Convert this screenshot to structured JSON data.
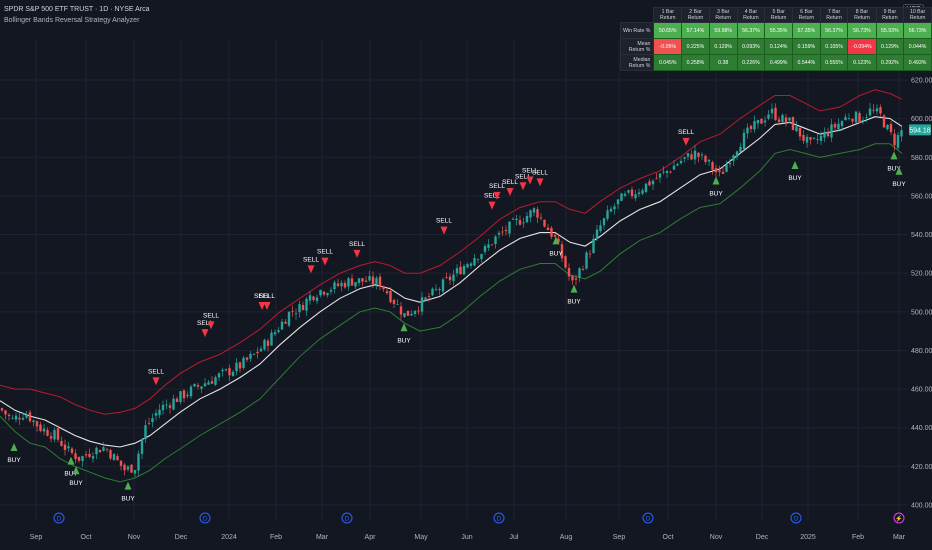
{
  "header": {
    "title": "SPDR S&P 500 ETF TRUST · 1D · NYSE Arca",
    "subtitle": "Bollinger Bands Reversal Strategy Analyzer",
    "currency": "USD"
  },
  "stats_table": {
    "columns": [
      "1 Bar Return",
      "2 Bar Return",
      "3 Bar Return",
      "4 Bar Return",
      "5 Bar Return",
      "6 Bar Return",
      "7 Bar Return",
      "8 Bar Return",
      "9 Bar Return",
      "10 Bar Return"
    ],
    "rows": [
      {
        "label": "Win Rate %",
        "values": [
          "50.65%",
          "57.14%",
          "59.98%",
          "56.37%",
          "55.35%",
          "57.35%",
          "56.37%",
          "56.73%",
          "55.93%",
          "56.73%"
        ],
        "styles": [
          "wr",
          "wr",
          "wr",
          "wr",
          "wr",
          "wr",
          "wr",
          "wr",
          "wr",
          "wr"
        ]
      },
      {
        "label": "Mean Return %",
        "values": [
          "-0.05%",
          "0.225%",
          "0.129%",
          "0.093%",
          "0.124%",
          "0.159%",
          "0.105%",
          "-0.094%",
          "0.129%",
          "0.044%"
        ],
        "styles": [
          "ngl",
          "gd",
          "gd",
          "gd",
          "gd",
          "gd",
          "gd",
          "ng",
          "gd",
          "gd"
        ]
      },
      {
        "label": "Median Return %",
        "values": [
          "0.045%",
          "0.258%",
          "0.38",
          "0.226%",
          "0.499%",
          "0.544%",
          "0.555%",
          "0.123%",
          "0.292%",
          "0.493%"
        ],
        "styles": [
          "gd",
          "gd",
          "gd",
          "gd",
          "gd",
          "gd",
          "gd",
          "gd",
          "gd",
          "gd"
        ]
      }
    ]
  },
  "colors": {
    "background": "#131722",
    "grid": "#1f2331",
    "up": "#26a69a",
    "down": "#ef5350",
    "basis": "#e6e6e6",
    "upper_band": "#b71c2f",
    "lower_band": "#2e7d32",
    "buy": "#4caf50",
    "sell": "#f23645",
    "axis_text": "#b2b5be",
    "price_label": "#26a69a"
  },
  "chart_data": {
    "type": "candlestick",
    "title": "SPDR S&P 500 ETF TRUST · 1D · NYSE Arca",
    "x_ticks": [
      "Sep",
      "Oct",
      "Nov",
      "Dec",
      "2024",
      "Feb",
      "Mar",
      "Apr",
      "May",
      "Jun",
      "Jul",
      "Aug",
      "Sep",
      "Oct",
      "Nov",
      "Dec",
      "2025",
      "Feb",
      "Mar"
    ],
    "y_ticks": [
      400,
      420,
      440,
      460,
      480,
      500,
      520,
      540,
      560,
      580,
      600,
      620
    ],
    "ylim": [
      395,
      628
    ],
    "last_price_label": "594.18",
    "series": [
      {
        "name": "Price",
        "kind": "close",
        "points": [
          [
            0,
            450
          ],
          [
            12,
            444
          ],
          [
            25,
            448
          ],
          [
            40,
            440
          ],
          [
            55,
            436
          ],
          [
            68,
            428
          ],
          [
            80,
            424
          ],
          [
            92,
            428
          ],
          [
            105,
            430
          ],
          [
            115,
            424
          ],
          [
            125,
            418
          ],
          [
            135,
            420
          ],
          [
            145,
            440
          ],
          [
            160,
            450
          ],
          [
            180,
            456
          ],
          [
            200,
            462
          ],
          [
            220,
            467
          ],
          [
            240,
            472
          ],
          [
            255,
            478
          ],
          [
            268,
            485
          ],
          [
            280,
            493
          ],
          [
            290,
            500
          ],
          [
            300,
            502
          ],
          [
            310,
            508
          ],
          [
            320,
            511
          ],
          [
            335,
            513
          ],
          [
            350,
            516
          ],
          [
            365,
            516
          ],
          [
            380,
            515
          ],
          [
            395,
            505
          ],
          [
            405,
            498
          ],
          [
            415,
            502
          ],
          [
            430,
            508
          ],
          [
            445,
            515
          ],
          [
            460,
            522
          ],
          [
            475,
            529
          ],
          [
            485,
            532
          ],
          [
            495,
            538
          ],
          [
            505,
            542
          ],
          [
            515,
            546
          ],
          [
            525,
            549
          ],
          [
            535,
            553
          ],
          [
            545,
            545
          ],
          [
            555,
            538
          ],
          [
            565,
            524
          ],
          [
            572,
            514
          ],
          [
            580,
            522
          ],
          [
            590,
            532
          ],
          [
            600,
            544
          ],
          [
            610,
            552
          ],
          [
            620,
            558
          ],
          [
            635,
            562
          ],
          [
            650,
            567
          ],
          [
            665,
            572
          ],
          [
            680,
            578
          ],
          [
            695,
            582
          ],
          [
            710,
            576
          ],
          [
            720,
            570
          ],
          [
            730,
            580
          ],
          [
            740,
            588
          ],
          [
            750,
            594
          ],
          [
            760,
            598
          ],
          [
            770,
            604
          ],
          [
            780,
            600
          ],
          [
            790,
            598
          ],
          [
            800,
            592
          ],
          [
            810,
            586
          ],
          [
            820,
            590
          ],
          [
            830,
            594
          ],
          [
            840,
            598
          ],
          [
            850,
            602
          ],
          [
            860,
            600
          ],
          [
            870,
            604
          ],
          [
            880,
            602
          ],
          [
            888,
            594
          ],
          [
            895,
            588
          ],
          [
            902,
            594
          ]
        ]
      },
      {
        "name": "Basis",
        "kind": "basis",
        "points": [
          [
            0,
            454
          ],
          [
            15,
            449
          ],
          [
            30,
            446
          ],
          [
            45,
            444
          ],
          [
            60,
            440
          ],
          [
            75,
            436
          ],
          [
            90,
            433
          ],
          [
            105,
            431
          ],
          [
            120,
            430
          ],
          [
            135,
            432
          ],
          [
            150,
            436
          ],
          [
            165,
            442
          ],
          [
            180,
            448
          ],
          [
            200,
            455
          ],
          [
            220,
            460
          ],
          [
            240,
            466
          ],
          [
            260,
            473
          ],
          [
            280,
            483
          ],
          [
            300,
            492
          ],
          [
            320,
            500
          ],
          [
            340,
            507
          ],
          [
            360,
            512
          ],
          [
            375,
            514
          ],
          [
            390,
            512
          ],
          [
            405,
            507
          ],
          [
            420,
            505
          ],
          [
            440,
            508
          ],
          [
            460,
            515
          ],
          [
            480,
            524
          ],
          [
            500,
            532
          ],
          [
            520,
            538
          ],
          [
            540,
            541
          ],
          [
            555,
            541
          ],
          [
            570,
            536
          ],
          [
            585,
            534
          ],
          [
            600,
            539
          ],
          [
            620,
            547
          ],
          [
            640,
            553
          ],
          [
            660,
            557
          ],
          [
            680,
            564
          ],
          [
            700,
            571
          ],
          [
            720,
            574
          ],
          [
            740,
            582
          ],
          [
            760,
            590
          ],
          [
            775,
            597
          ],
          [
            790,
            598
          ],
          [
            805,
            595
          ],
          [
            820,
            592
          ],
          [
            840,
            594
          ],
          [
            860,
            598
          ],
          [
            875,
            601
          ],
          [
            890,
            600
          ],
          [
            902,
            596
          ]
        ]
      },
      {
        "name": "Upper band",
        "kind": "upper",
        "points": [
          [
            0,
            462
          ],
          [
            15,
            460
          ],
          [
            30,
            460
          ],
          [
            45,
            458
          ],
          [
            60,
            456
          ],
          [
            75,
            452
          ],
          [
            90,
            449
          ],
          [
            105,
            447
          ],
          [
            120,
            448
          ],
          [
            135,
            450
          ],
          [
            150,
            455
          ],
          [
            165,
            462
          ],
          [
            180,
            468
          ],
          [
            200,
            474
          ],
          [
            220,
            478
          ],
          [
            240,
            484
          ],
          [
            260,
            491
          ],
          [
            280,
            500
          ],
          [
            300,
            507
          ],
          [
            320,
            514
          ],
          [
            340,
            520
          ],
          [
            360,
            524
          ],
          [
            375,
            526
          ],
          [
            390,
            524
          ],
          [
            405,
            520
          ],
          [
            420,
            520
          ],
          [
            440,
            524
          ],
          [
            460,
            531
          ],
          [
            480,
            539
          ],
          [
            500,
            548
          ],
          [
            520,
            554
          ],
          [
            540,
            557
          ],
          [
            555,
            557
          ],
          [
            570,
            553
          ],
          [
            585,
            551
          ],
          [
            600,
            557
          ],
          [
            620,
            564
          ],
          [
            640,
            569
          ],
          [
            660,
            573
          ],
          [
            680,
            580
          ],
          [
            700,
            588
          ],
          [
            720,
            592
          ],
          [
            740,
            600
          ],
          [
            760,
            607
          ],
          [
            775,
            612
          ],
          [
            790,
            612
          ],
          [
            805,
            608
          ],
          [
            820,
            604
          ],
          [
            840,
            606
          ],
          [
            860,
            612
          ],
          [
            875,
            615
          ],
          [
            890,
            613
          ],
          [
            902,
            610
          ]
        ]
      },
      {
        "name": "Lower band",
        "kind": "lower",
        "points": [
          [
            0,
            446
          ],
          [
            15,
            438
          ],
          [
            30,
            432
          ],
          [
            45,
            430
          ],
          [
            60,
            424
          ],
          [
            75,
            420
          ],
          [
            90,
            417
          ],
          [
            105,
            414
          ],
          [
            120,
            412
          ],
          [
            135,
            414
          ],
          [
            150,
            418
          ],
          [
            165,
            424
          ],
          [
            180,
            429
          ],
          [
            200,
            436
          ],
          [
            220,
            442
          ],
          [
            240,
            448
          ],
          [
            260,
            455
          ],
          [
            280,
            466
          ],
          [
            300,
            477
          ],
          [
            320,
            486
          ],
          [
            340,
            493
          ],
          [
            360,
            500
          ],
          [
            375,
            502
          ],
          [
            390,
            500
          ],
          [
            405,
            494
          ],
          [
            420,
            490
          ],
          [
            440,
            492
          ],
          [
            460,
            499
          ],
          [
            480,
            508
          ],
          [
            500,
            516
          ],
          [
            520,
            522
          ],
          [
            540,
            525
          ],
          [
            555,
            525
          ],
          [
            570,
            519
          ],
          [
            585,
            517
          ],
          [
            600,
            521
          ],
          [
            620,
            530
          ],
          [
            640,
            537
          ],
          [
            660,
            541
          ],
          [
            680,
            548
          ],
          [
            700,
            554
          ],
          [
            720,
            556
          ],
          [
            740,
            564
          ],
          [
            760,
            573
          ],
          [
            775,
            582
          ],
          [
            790,
            584
          ],
          [
            805,
            582
          ],
          [
            820,
            580
          ],
          [
            840,
            582
          ],
          [
            860,
            584
          ],
          [
            875,
            587
          ],
          [
            890,
            587
          ],
          [
            902,
            582
          ]
        ]
      }
    ],
    "signals": [
      {
        "label": "BUY",
        "kind": "buy",
        "x": 14,
        "price": 430
      },
      {
        "label": "BUY",
        "kind": "buy",
        "x": 71,
        "price": 423
      },
      {
        "label": "BUY",
        "kind": "buy",
        "x": 76,
        "price": 418
      },
      {
        "label": "BUY",
        "kind": "buy",
        "x": 128,
        "price": 410
      },
      {
        "label": "SELL",
        "kind": "sell",
        "x": 156,
        "price": 464
      },
      {
        "label": "SELL",
        "kind": "sell",
        "x": 205,
        "price": 489
      },
      {
        "label": "SELL",
        "kind": "sell",
        "x": 211,
        "price": 493
      },
      {
        "label": "SELL",
        "kind": "sell",
        "x": 262,
        "price": 503
      },
      {
        "label": "SELL",
        "kind": "sell",
        "x": 267,
        "price": 503
      },
      {
        "label": "SELL",
        "kind": "sell",
        "x": 311,
        "price": 522
      },
      {
        "label": "SELL",
        "kind": "sell",
        "x": 325,
        "price": 526
      },
      {
        "label": "SELL",
        "kind": "sell",
        "x": 357,
        "price": 530
      },
      {
        "label": "BUY",
        "kind": "buy",
        "x": 404,
        "price": 492
      },
      {
        "label": "SELL",
        "kind": "sell",
        "x": 444,
        "price": 542
      },
      {
        "label": "SELL",
        "kind": "sell",
        "x": 492,
        "price": 555
      },
      {
        "label": "SELL",
        "kind": "sell",
        "x": 497,
        "price": 560
      },
      {
        "label": "SELL",
        "kind": "sell",
        "x": 510,
        "price": 562
      },
      {
        "label": "SELL",
        "kind": "sell",
        "x": 523,
        "price": 565
      },
      {
        "label": "SELL",
        "kind": "sell",
        "x": 530,
        "price": 568
      },
      {
        "label": "SELL",
        "kind": "sell",
        "x": 540,
        "price": 567
      },
      {
        "label": "BUY",
        "kind": "buy",
        "x": 556,
        "price": 537
      },
      {
        "label": "BUY",
        "kind": "buy",
        "x": 574,
        "price": 512
      },
      {
        "label": "SELL",
        "kind": "sell",
        "x": 686,
        "price": 588
      },
      {
        "label": "BUY",
        "kind": "buy",
        "x": 716,
        "price": 568
      },
      {
        "label": "BUY",
        "kind": "buy",
        "x": 795,
        "price": 576
      },
      {
        "label": "BUY",
        "kind": "buy",
        "x": 894,
        "price": 581
      },
      {
        "label": "BUY",
        "kind": "buy",
        "x": 899,
        "price": 573
      }
    ]
  }
}
